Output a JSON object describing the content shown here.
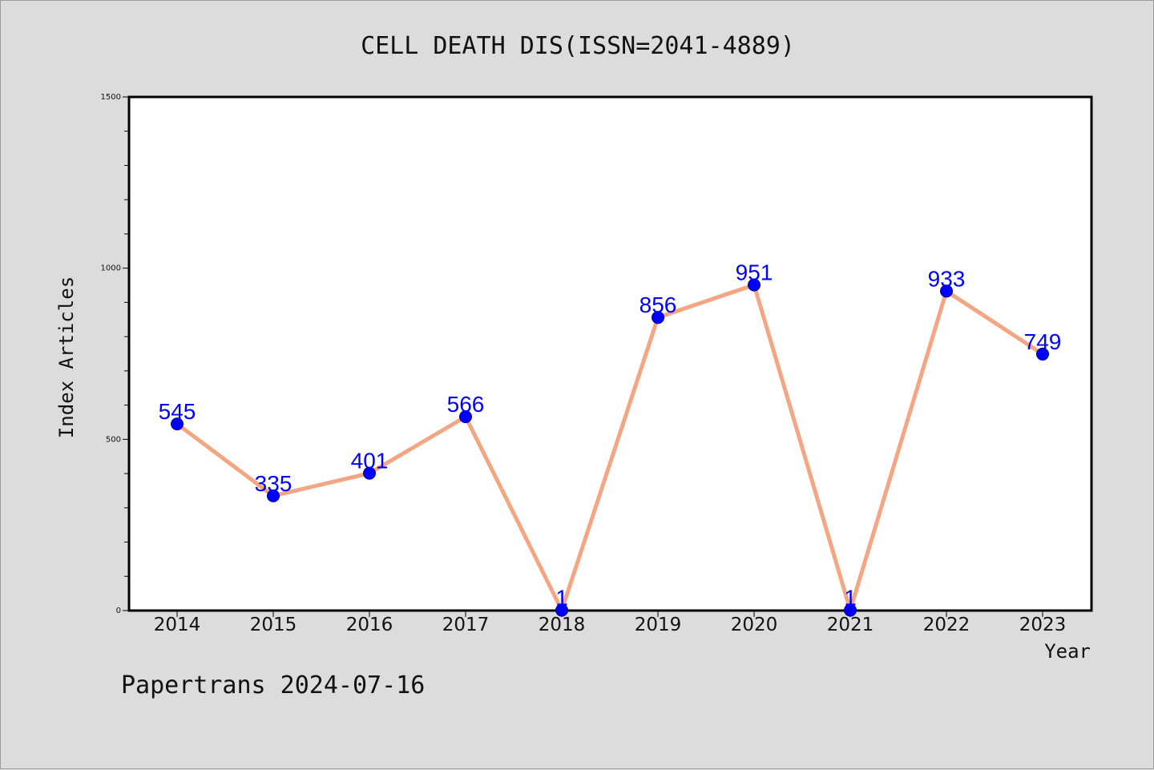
{
  "chart_data": {
    "type": "line",
    "title": "CELL DEATH DIS(ISSN=2041-4889)",
    "xlabel": "Year",
    "ylabel": "Index Articles",
    "categories": [
      "2014",
      "2015",
      "2016",
      "2017",
      "2018",
      "2019",
      "2020",
      "2021",
      "2022",
      "2023"
    ],
    "values": [
      545,
      335,
      401,
      566,
      1,
      856,
      951,
      1,
      933,
      749
    ],
    "data_labels": [
      "545",
      "335",
      "401",
      "566",
      "1",
      "856",
      "951",
      "1",
      "933",
      "749"
    ],
    "ylim": [
      0,
      1500
    ],
    "yticks": [
      0,
      500,
      1000,
      1500
    ],
    "ytick_labels": [
      "0",
      "500",
      "1000",
      "1500"
    ],
    "grid": false,
    "line_color": "#f4a582",
    "marker_color": "#0000ff",
    "label_color": "#0000ff"
  },
  "footer": {
    "text": "Papertrans 2024-07-16"
  }
}
